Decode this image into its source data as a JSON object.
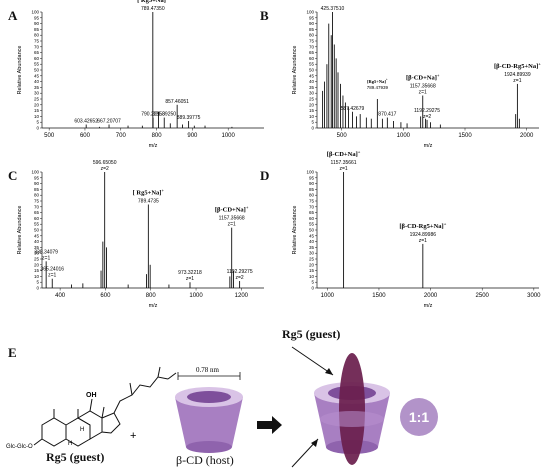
{
  "chart_data": [
    {
      "id": "A",
      "panel_label": "A",
      "type": "bar",
      "subtype": "mass-spectrum",
      "xlabel": "m/z",
      "ylabel": "Relative Abundance",
      "xlim": [
        480,
        1100
      ],
      "ylim": [
        0,
        100
      ],
      "xticks": [
        500,
        600,
        700,
        800,
        900,
        1000
      ],
      "yticks": [
        0,
        5,
        10,
        15,
        20,
        25,
        30,
        35,
        40,
        45,
        50,
        55,
        60,
        65,
        70,
        75,
        80,
        85,
        90,
        95,
        100
      ],
      "peaks": [
        {
          "x": 789.4735,
          "y": 100
        },
        {
          "x": 857.46051,
          "y": 20
        },
        {
          "x": 889.39775,
          "y": 6
        },
        {
          "x": 821.3925,
          "y": 9
        },
        {
          "x": 790.22958,
          "y": 9
        },
        {
          "x": 667.20707,
          "y": 3
        },
        {
          "x": 603.42652,
          "y": 3
        },
        {
          "x": 805.2,
          "y": 14
        },
        {
          "x": 838.3,
          "y": 4
        },
        {
          "x": 872.4,
          "y": 3
        },
        {
          "x": 905.4,
          "y": 2
        },
        {
          "x": 935.3,
          "y": 2
        },
        {
          "x": 760.3,
          "y": 2
        },
        {
          "x": 720.3,
          "y": 2
        },
        {
          "x": 640.4,
          "y": 1
        },
        {
          "x": 1010.4,
          "y": 1
        }
      ],
      "peak_labels": [
        {
          "x": 789.4735,
          "y": 100,
          "lines": [
            "789.47350"
          ]
        },
        {
          "x": 857.46051,
          "y": 20,
          "lines": [
            "857.46051"
          ]
        },
        {
          "x": 889.39775,
          "y": 6,
          "lines": [
            "889.39775"
          ]
        },
        {
          "x": 821.3925,
          "y": 9,
          "lines": [
            "821.39250"
          ]
        },
        {
          "x": 790.22958,
          "y": 9,
          "lines": [
            "790.22958"
          ]
        },
        {
          "x": 667.20707,
          "y": 3,
          "lines": [
            "667.20707"
          ]
        },
        {
          "x": 603.42652,
          "y": 3,
          "lines": [
            "603.42652"
          ]
        }
      ],
      "species": [
        {
          "x": 789.4735,
          "y": 100,
          "text": "[ Rg5+Na]",
          "sup": "+"
        }
      ]
    },
    {
      "id": "B",
      "panel_label": "B",
      "type": "bar",
      "subtype": "mass-spectrum",
      "xlabel": "m/z",
      "ylabel": "Relative Abundance",
      "xlim": [
        300,
        2100
      ],
      "ylim": [
        0,
        100
      ],
      "xticks": [
        500,
        1000,
        1500,
        2000
      ],
      "yticks": [
        0,
        5,
        10,
        15,
        20,
        25,
        30,
        35,
        40,
        45,
        50,
        55,
        60,
        65,
        70,
        75,
        80,
        85,
        90,
        95,
        100
      ],
      "peaks": [
        {
          "x": 425.3751,
          "y": 100
        },
        {
          "x": 395.3,
          "y": 90
        },
        {
          "x": 415.3,
          "y": 80
        },
        {
          "x": 440.3,
          "y": 72
        },
        {
          "x": 455.3,
          "y": 60
        },
        {
          "x": 470.3,
          "y": 48
        },
        {
          "x": 380.3,
          "y": 55
        },
        {
          "x": 360.3,
          "y": 40
        },
        {
          "x": 345.3,
          "y": 32
        },
        {
          "x": 490.3,
          "y": 38
        },
        {
          "x": 510.3,
          "y": 28
        },
        {
          "x": 530.3,
          "y": 22
        },
        {
          "x": 555.3,
          "y": 18
        },
        {
          "x": 587.42679,
          "y": 14
        },
        {
          "x": 620.3,
          "y": 10
        },
        {
          "x": 650.3,
          "y": 12
        },
        {
          "x": 700.3,
          "y": 9
        },
        {
          "x": 740.3,
          "y": 8
        },
        {
          "x": 789.47939,
          "y": 25
        },
        {
          "x": 830.3,
          "y": 8
        },
        {
          "x": 870.417,
          "y": 9
        },
        {
          "x": 920.3,
          "y": 6
        },
        {
          "x": 980.3,
          "y": 5
        },
        {
          "x": 1030.3,
          "y": 4
        },
        {
          "x": 1157.35668,
          "y": 28
        },
        {
          "x": 1140.3,
          "y": 10
        },
        {
          "x": 1180.3,
          "y": 8
        },
        {
          "x": 1192.29275,
          "y": 7
        },
        {
          "x": 1220.3,
          "y": 5
        },
        {
          "x": 1300.3,
          "y": 3
        },
        {
          "x": 1924.89939,
          "y": 38
        },
        {
          "x": 1910.8,
          "y": 12
        },
        {
          "x": 1940.8,
          "y": 8
        }
      ],
      "peak_labels": [
        {
          "x": 425.3751,
          "y": 100,
          "lines": [
            "425.37510"
          ]
        },
        {
          "x": 587.42679,
          "y": 14,
          "lines": [
            "587.42679"
          ]
        },
        {
          "x": 870.417,
          "y": 9,
          "lines": [
            "870.417"
          ]
        },
        {
          "x": 1157.35668,
          "y": 28,
          "lines": [
            "1157.35668",
            "z=1"
          ]
        },
        {
          "x": 1192.29275,
          "y": 7,
          "lines": [
            "1192.29275",
            "z=2"
          ]
        },
        {
          "x": 1924.89939,
          "y": 38,
          "lines": [
            "1924.89939",
            "z=1"
          ]
        }
      ],
      "species": [
        {
          "x": 789.47939,
          "y": 25,
          "text": "[Rg5+Na]",
          "sup": "+",
          "sub": "789.47939",
          "small": true
        },
        {
          "x": 1157.35668,
          "y": 28,
          "text": "[β-CD+Na]",
          "sup": "+"
        },
        {
          "x": 1924.89939,
          "y": 38,
          "text": "[β-CD-Rg5+Na]",
          "sup": "+"
        }
      ]
    },
    {
      "id": "C",
      "panel_label": "C",
      "type": "bar",
      "subtype": "mass-spectrum",
      "xlabel": "m/z",
      "ylabel": "Relative Abundance",
      "xlim": [
        320,
        1300
      ],
      "ylim": [
        0,
        100
      ],
      "xticks": [
        400,
        600,
        800,
        1000,
        1200
      ],
      "yticks": [
        0,
        5,
        10,
        15,
        20,
        25,
        30,
        35,
        40,
        45,
        50,
        55,
        60,
        65,
        70,
        75,
        80,
        85,
        90,
        95,
        100
      ],
      "peaks": [
        {
          "x": 596.6505,
          "y": 100
        },
        {
          "x": 588.6,
          "y": 40
        },
        {
          "x": 604.6,
          "y": 35
        },
        {
          "x": 580.6,
          "y": 15
        },
        {
          "x": 789.4735,
          "y": 72
        },
        {
          "x": 797.5,
          "y": 20
        },
        {
          "x": 781.5,
          "y": 12
        },
        {
          "x": 1157.35668,
          "y": 52
        },
        {
          "x": 1165.3,
          "y": 15
        },
        {
          "x": 1149.3,
          "y": 10
        },
        {
          "x": 338.34079,
          "y": 23
        },
        {
          "x": 365.24016,
          "y": 8
        },
        {
          "x": 973.32218,
          "y": 5
        },
        {
          "x": 1192.29275,
          "y": 6
        },
        {
          "x": 450.3,
          "y": 3
        },
        {
          "x": 500.3,
          "y": 4
        },
        {
          "x": 700.3,
          "y": 3
        },
        {
          "x": 880.3,
          "y": 3
        }
      ],
      "peak_labels": [
        {
          "x": 596.6505,
          "y": 100,
          "lines": [
            "596.65050",
            "z=2"
          ]
        },
        {
          "x": 789.4735,
          "y": 72,
          "lines": [
            "789.4735"
          ]
        },
        {
          "x": 1157.35668,
          "y": 52,
          "lines": [
            "1157.35668",
            "z=1"
          ]
        },
        {
          "x": 338.34079,
          "y": 23,
          "lines": [
            "338.34079",
            "z=1"
          ]
        },
        {
          "x": 365.24016,
          "y": 8,
          "lines": [
            "365.24016",
            "z=1"
          ]
        },
        {
          "x": 973.32218,
          "y": 5,
          "lines": [
            "973.32218",
            "z=1"
          ]
        },
        {
          "x": 1192.29275,
          "y": 6,
          "lines": [
            "1192.29275",
            "z=2"
          ]
        }
      ],
      "species": [
        {
          "x": 789.4735,
          "y": 72,
          "text": "[ Rg5+Na]",
          "sup": "+"
        },
        {
          "x": 1157.35668,
          "y": 52,
          "text": "[β-CD+Na]",
          "sup": "+"
        }
      ]
    },
    {
      "id": "D",
      "panel_label": "D",
      "type": "bar",
      "subtype": "mass-spectrum",
      "xlabel": "m/z",
      "ylabel": "Relative Abundance",
      "xlim": [
        900,
        3050
      ],
      "ylim": [
        0,
        100
      ],
      "xticks": [
        1000,
        1500,
        2000,
        2500,
        3000
      ],
      "yticks": [
        0,
        5,
        10,
        15,
        20,
        25,
        30,
        35,
        40,
        45,
        50,
        55,
        60,
        65,
        70,
        75,
        80,
        85,
        90,
        95,
        100
      ],
      "peaks": [
        {
          "x": 1157.35661,
          "y": 100
        },
        {
          "x": 1924.89986,
          "y": 38
        }
      ],
      "peak_labels": [
        {
          "x": 1157.35661,
          "y": 100,
          "lines": [
            "1157.35661",
            "z=1"
          ]
        },
        {
          "x": 1924.89986,
          "y": 38,
          "lines": [
            "1924.89986",
            "z=1"
          ]
        }
      ],
      "species": [
        {
          "x": 1157.35661,
          "y": 100,
          "text": "[β-CD+Na]",
          "sup": "+"
        },
        {
          "x": 1924.89986,
          "y": 38,
          "text": "[β-CD-Rg5+Na]",
          "sup": "+"
        }
      ]
    }
  ],
  "illustration": {
    "panel_label": "E",
    "width_label": "0.78 nm",
    "guest_label": "Rg5  (guest)",
    "host_label": "β-CD (host)",
    "complex_guest_label": "Rg5  (guest)",
    "ratio_label": "1:1",
    "plus_sign": "+",
    "glycoside_label": "Glc-Glc-O",
    "oh_label": "OH",
    "h_label": "H",
    "colors": {
      "cd_body": "#a87fc2",
      "cd_light": "#d9c3e6",
      "cd_dark": "#7e4f9b",
      "guest_ellipse": "#6a1f4e",
      "badge": "#b293c9"
    }
  }
}
